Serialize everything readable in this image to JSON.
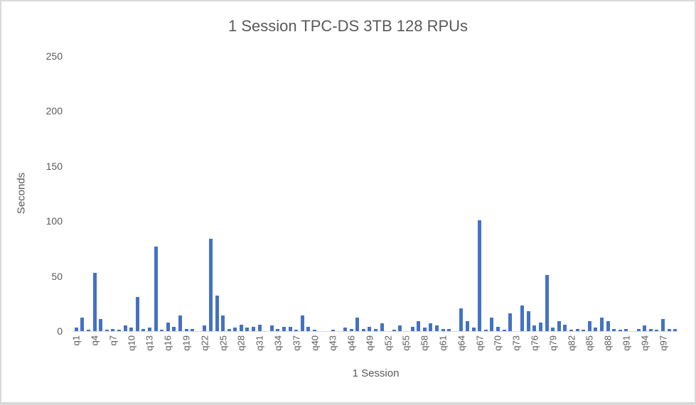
{
  "chart_data": {
    "type": "bar",
    "title": "1 Session TPC-DS 3TB 128 RPUs",
    "xlabel": "1 Session",
    "ylabel": "Seconds",
    "ylim": [
      0,
      250
    ],
    "yticks": [
      0,
      50,
      100,
      150,
      200,
      250
    ],
    "grid": false,
    "legend": null,
    "bar_color": "#4472C4",
    "xtick_labels_shown": [
      "q1",
      "q4",
      "q7",
      "q10",
      "q13",
      "q16",
      "q19",
      "q22",
      "q25",
      "q28",
      "q31",
      "q34",
      "q37",
      "q40",
      "q43",
      "q46",
      "q49",
      "q52",
      "q55",
      "q58",
      "q61",
      "q64",
      "q67",
      "q70",
      "q73",
      "q76",
      "q79",
      "q82",
      "q85",
      "q88",
      "q91",
      "q94",
      "q97"
    ],
    "categories": [
      "q1",
      "q2",
      "q3",
      "q4",
      "q5",
      "q6",
      "q7",
      "q8",
      "q9",
      "q10",
      "q11",
      "q12",
      "q13",
      "q14",
      "q15",
      "q16",
      "q17",
      "q18",
      "q19",
      "q20",
      "q21",
      "q22",
      "q23",
      "q24",
      "q25",
      "q26",
      "q27",
      "q28",
      "q29",
      "q30",
      "q31",
      "q32",
      "q33",
      "q34",
      "q35",
      "q36",
      "q37",
      "q38",
      "q39",
      "q40",
      "q41",
      "q42",
      "q43",
      "q44",
      "q45",
      "q46",
      "q47",
      "q48",
      "q49",
      "q50",
      "q51",
      "q52",
      "q53",
      "q54",
      "q55",
      "q56",
      "q57",
      "q58",
      "q59",
      "q60",
      "q61",
      "q62",
      "q63",
      "q64",
      "q65",
      "q66",
      "q67",
      "q68",
      "q69",
      "q70",
      "q71",
      "q72",
      "q73",
      "q74",
      "q75",
      "q76",
      "q77",
      "q78",
      "q79",
      "q80",
      "q81",
      "q82",
      "q83",
      "q84",
      "q85",
      "q86",
      "q87",
      "q88",
      "q89",
      "q90",
      "q91",
      "q92",
      "q93",
      "q94",
      "q95",
      "q96",
      "q97",
      "q98",
      "q99"
    ],
    "series": [
      {
        "name": "1 Session",
        "values": [
          3,
          12,
          1,
          53,
          11,
          1,
          2,
          1,
          5,
          3,
          31,
          2,
          3,
          77,
          1,
          8,
          4,
          14,
          2,
          2,
          0,
          5,
          84,
          32,
          14,
          2,
          3,
          6,
          3,
          4,
          6,
          0,
          5,
          2,
          4,
          4,
          1,
          14,
          4,
          1,
          0,
          0,
          1,
          0,
          3,
          2,
          12,
          2,
          4,
          2,
          7,
          0,
          1,
          5,
          0,
          4,
          9,
          3,
          7,
          5,
          2,
          2,
          0,
          21,
          9,
          3,
          101,
          1,
          12,
          4,
          1,
          16,
          0,
          23,
          18,
          5,
          8,
          51,
          3,
          9,
          6,
          1,
          2,
          1,
          9,
          3,
          12,
          9,
          2,
          1,
          2,
          0,
          2,
          5,
          2,
          1,
          11,
          2,
          2
        ]
      }
    ]
  }
}
